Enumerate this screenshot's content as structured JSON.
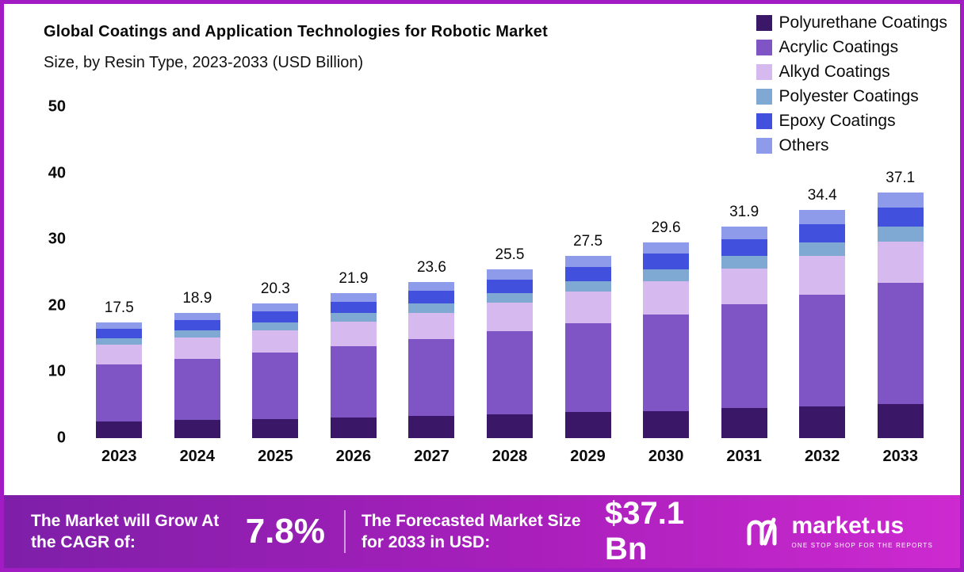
{
  "title": {
    "line1": "Global Coatings and Application Technologies for Robotic Market",
    "line2": "Size, by Resin Type, 2023-2033 (USD Billion)"
  },
  "chart_data": {
    "type": "bar",
    "stacked": true,
    "title": "Global Coatings and Application Technologies for Robotic Market Size, by Resin Type, 2023-2033 (USD Billion)",
    "categories": [
      "2023",
      "2024",
      "2025",
      "2026",
      "2027",
      "2028",
      "2029",
      "2030",
      "2031",
      "2032",
      "2033"
    ],
    "series": [
      {
        "name": "Polyurethane Coatings",
        "color": "#3b1768",
        "values": [
          2.5,
          2.7,
          2.9,
          3.1,
          3.3,
          3.6,
          3.9,
          4.1,
          4.5,
          4.8,
          5.2
        ]
      },
      {
        "name": "Acrylic Coatings",
        "color": "#7f55c6",
        "values": [
          8.6,
          9.3,
          10.0,
          10.8,
          11.6,
          12.5,
          13.5,
          14.6,
          15.7,
          16.9,
          18.2
        ]
      },
      {
        "name": "Alkyd Coatings",
        "color": "#d6b9ee",
        "values": [
          3.0,
          3.2,
          3.4,
          3.7,
          4.0,
          4.3,
          4.7,
          5.0,
          5.4,
          5.8,
          6.3
        ]
      },
      {
        "name": "Polyester Coatings",
        "color": "#7fa9d2",
        "values": [
          1.0,
          1.1,
          1.2,
          1.3,
          1.4,
          1.5,
          1.6,
          1.8,
          1.9,
          2.1,
          2.2
        ]
      },
      {
        "name": "Epoxy Coatings",
        "color": "#4150dd",
        "values": [
          1.4,
          1.5,
          1.6,
          1.7,
          1.9,
          2.0,
          2.2,
          2.4,
          2.5,
          2.7,
          2.9
        ]
      },
      {
        "name": "Others",
        "color": "#8e9bea",
        "values": [
          1.0,
          1.1,
          1.2,
          1.3,
          1.4,
          1.6,
          1.6,
          1.7,
          1.9,
          2.1,
          2.3
        ]
      }
    ],
    "totals": [
      17.5,
      18.9,
      20.3,
      21.9,
      23.6,
      25.5,
      27.5,
      29.6,
      31.9,
      34.4,
      37.1
    ],
    "ylim": [
      0,
      50
    ],
    "yticks": [
      0,
      10,
      20,
      30,
      40,
      50
    ],
    "grid": false,
    "legend_position": "top-right"
  },
  "footer": {
    "cagr_label": "The Market will Grow At the CAGR of:",
    "cagr_value": "7.8%",
    "forecast_label": "The Forecasted Market Size for 2033 in USD:",
    "forecast_value": "$37.1 Bn",
    "brand": "market.us",
    "brand_tagline": "ONE STOP SHOP FOR THE REPORTS"
  },
  "colors": {
    "frame": "#a21cc4",
    "footer_gradient_left": "#7e1fa8",
    "footer_gradient_right": "#cd2ad0",
    "text": "#0b0b0b"
  }
}
